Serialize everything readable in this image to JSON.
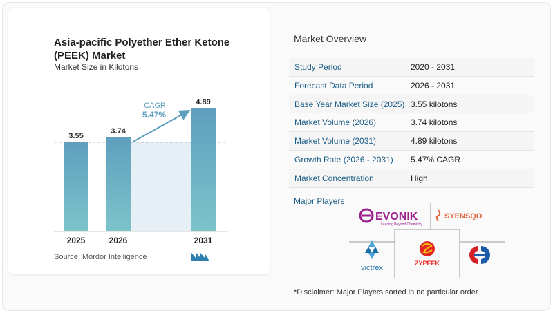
{
  "chart_data": {
    "type": "bar",
    "title": "Asia-pacific Polyether Ether Ketone (PEEK) Market",
    "subtitle": "Market Size in Kilotons",
    "categories": [
      "2025",
      "2026",
      "2031"
    ],
    "values": [
      3.55,
      3.74,
      4.89
    ],
    "value_labels": [
      "3.55",
      "3.74",
      "4.89"
    ],
    "cagr_label": "CAGR",
    "cagr_value": "5.47%",
    "bar_color": "#5f9fbe",
    "bar_color_bottom": "#7cc4ca",
    "shade_color": "#e6eff5",
    "source": "Source:  Mordor Intelligence"
  },
  "overview": {
    "title": "Market Overview",
    "rows": [
      {
        "label": "Study Period",
        "value": "2020 - 2031"
      },
      {
        "label": "Forecast Data Period",
        "value": "2026 - 2031"
      },
      {
        "label": "Base Year Market Size (2025)",
        "value": "3.55 kilotons"
      },
      {
        "label": "Market Volume (2026)",
        "value": "3.74 kilotons"
      },
      {
        "label": "Market Volume (2031)",
        "value": "4.89 kilotons"
      },
      {
        "label": "Growth Rate (2026 - 2031)",
        "value": "5.47% CAGR"
      },
      {
        "label": "Market Concentration",
        "value": "High"
      }
    ]
  },
  "players": {
    "title": "Major Players",
    "evonik": "EVONIK",
    "evonik_tagline": "Leading Beyond Chemistry",
    "syensqo": "SYENSQO",
    "victrex": "victrex",
    "zypeek": "ZYPEEK"
  },
  "disclaimer": "*Disclaimer: Major Players sorted in no particular order",
  "colors": {
    "accent_blue": "#1b5c86",
    "evonik_purple": "#9b1f8e",
    "syensqo_orange": "#e0643a",
    "zypeek_red": "#e52620",
    "victrex_blue": "#1a6ea8"
  }
}
